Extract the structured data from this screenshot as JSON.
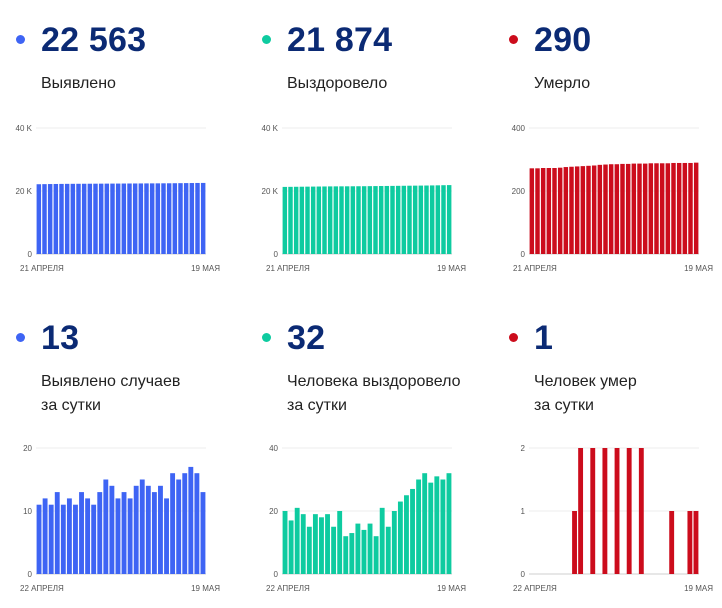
{
  "panels": [
    {
      "value": "22 563",
      "label_lines": [
        "Выявлено"
      ],
      "color": "#3e64f4",
      "chart_data": {
        "type": "bar",
        "yticks": [
          "0",
          "20 K",
          "40 K"
        ],
        "ylim": [
          0,
          40000
        ],
        "x_start_label": "21 АПРЕЛЯ",
        "x_end_label": "19 МАЯ",
        "values": [
          22150,
          22180,
          22210,
          22230,
          22250,
          22270,
          22280,
          22290,
          22300,
          22310,
          22320,
          22330,
          22340,
          22350,
          22360,
          22370,
          22380,
          22390,
          22400,
          22410,
          22420,
          22430,
          22440,
          22450,
          22470,
          22490,
          22510,
          22530,
          22550,
          22563
        ]
      }
    },
    {
      "value": "21 874",
      "label_lines": [
        "Выздоровело"
      ],
      "color": "#0ecba0",
      "chart_data": {
        "type": "bar",
        "yticks": [
          "0",
          "20 K",
          "40 K"
        ],
        "ylim": [
          0,
          40000
        ],
        "x_start_label": "21 АПРЕЛЯ",
        "x_end_label": "19 МАЯ",
        "values": [
          21300,
          21320,
          21340,
          21360,
          21380,
          21400,
          21420,
          21440,
          21460,
          21470,
          21480,
          21490,
          21500,
          21510,
          21520,
          21540,
          21560,
          21580,
          21600,
          21620,
          21640,
          21660,
          21680,
          21700,
          21720,
          21740,
          21770,
          21800,
          21840,
          21874
        ]
      }
    },
    {
      "value": "290",
      "label_lines": [
        "Умерло"
      ],
      "color": "#cc0c1c",
      "chart_data": {
        "type": "bar",
        "yticks": [
          "0",
          "200",
          "400"
        ],
        "ylim": [
          0,
          400
        ],
        "x_start_label": "21 АПРЕЛЯ",
        "x_end_label": "19 МАЯ",
        "values": [
          272,
          272,
          273,
          273,
          273,
          274,
          276,
          277,
          278,
          279,
          280,
          281,
          283,
          284,
          285,
          285,
          286,
          286,
          287,
          287,
          287,
          288,
          288,
          288,
          288,
          289,
          289,
          289,
          289,
          290
        ]
      }
    },
    {
      "value": "13",
      "label_lines": [
        "Выявлено случаев",
        "за сутки"
      ],
      "color": "#3e64f4",
      "chart_data": {
        "type": "bar",
        "yticks": [
          "0",
          "10",
          "20"
        ],
        "ylim": [
          0,
          20
        ],
        "x_start_label": "22 АПРЕЛЯ",
        "x_end_label": "19 МАЯ",
        "values": [
          11,
          12,
          11,
          13,
          11,
          12,
          11,
          13,
          12,
          11,
          13,
          15,
          14,
          12,
          13,
          12,
          14,
          15,
          14,
          13,
          14,
          12,
          16,
          15,
          16,
          17,
          16,
          13
        ]
      }
    },
    {
      "value": "32",
      "label_lines": [
        "Человека выздоровело",
        "за сутки"
      ],
      "color": "#0ecba0",
      "chart_data": {
        "type": "bar",
        "yticks": [
          "0",
          "20",
          "40"
        ],
        "ylim": [
          0,
          40
        ],
        "x_start_label": "22 АПРЕЛЯ",
        "x_end_label": "19 МАЯ",
        "values": [
          20,
          17,
          21,
          19,
          15,
          19,
          18,
          19,
          15,
          20,
          12,
          13,
          16,
          14,
          16,
          12,
          21,
          15,
          20,
          23,
          25,
          27,
          30,
          32,
          29,
          31,
          30,
          32
        ]
      }
    },
    {
      "value": "1",
      "label_lines": [
        "Человек умер",
        "за сутки"
      ],
      "color": "#cc0c1c",
      "chart_data": {
        "type": "bar",
        "yticks": [
          "0",
          "1",
          "2"
        ],
        "ylim": [
          0,
          2
        ],
        "x_start_label": "22 АПРЕЛЯ",
        "x_end_label": "19 МАЯ",
        "values": [
          0,
          0,
          0,
          0,
          0,
          0,
          0,
          1,
          2,
          0,
          2,
          0,
          2,
          0,
          2,
          0,
          2,
          0,
          2,
          0,
          0,
          0,
          0,
          1,
          0,
          0,
          1,
          1
        ]
      }
    }
  ]
}
